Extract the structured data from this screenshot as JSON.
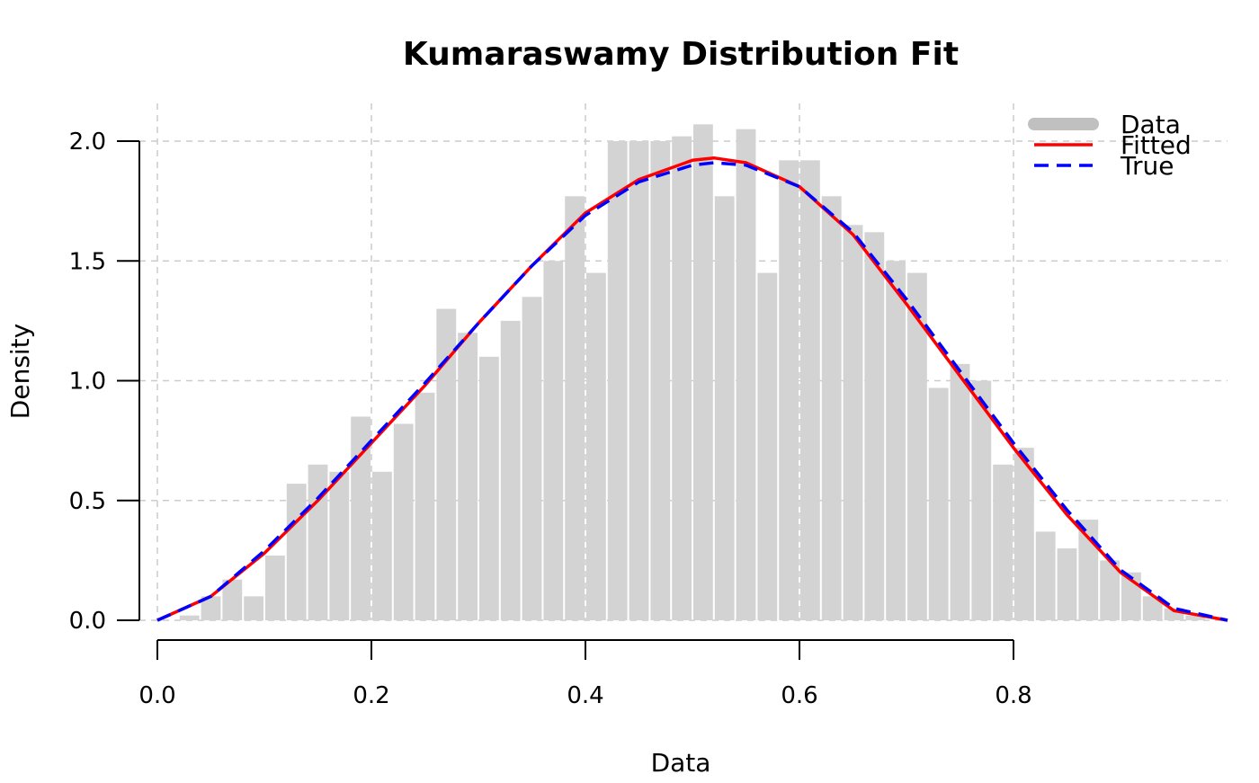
{
  "chart_data": {
    "type": "histogram",
    "title": "Kumaraswamy Distribution Fit",
    "xlabel": "Data",
    "ylabel": "Density",
    "xlim": [
      0,
      1
    ],
    "ylim": [
      0,
      2.1
    ],
    "x_ticks": [
      "0.0",
      "0.2",
      "0.4",
      "0.6",
      "0.8"
    ],
    "x_tick_values": [
      0,
      0.2,
      0.4,
      0.6,
      0.8
    ],
    "y_ticks": [
      "0.0",
      "0.5",
      "1.0",
      "1.5",
      "2.0"
    ],
    "y_tick_values": [
      0,
      0.5,
      1.0,
      1.5,
      2.0
    ],
    "grid": true,
    "legend_position": "top-right",
    "histogram": {
      "name": "Data",
      "color": "#d3d3d3",
      "bin_width": 0.02,
      "bin_starts": [
        0.0,
        0.02,
        0.04,
        0.06,
        0.08,
        0.1,
        0.12,
        0.14,
        0.16,
        0.18,
        0.2,
        0.22,
        0.24,
        0.26,
        0.28,
        0.3,
        0.32,
        0.34,
        0.36,
        0.38,
        0.4,
        0.42,
        0.44,
        0.46,
        0.48,
        0.5,
        0.52,
        0.54,
        0.56,
        0.58,
        0.6,
        0.62,
        0.64,
        0.66,
        0.68,
        0.7,
        0.72,
        0.74,
        0.76,
        0.78,
        0.8,
        0.82,
        0.84,
        0.86,
        0.88,
        0.9,
        0.92,
        0.94,
        0.96,
        0.98
      ],
      "densities": [
        0.0,
        0.02,
        0.1,
        0.17,
        0.1,
        0.27,
        0.57,
        0.65,
        0.62,
        0.85,
        0.62,
        0.82,
        0.95,
        1.3,
        1.2,
        1.1,
        1.25,
        1.35,
        1.5,
        1.77,
        1.45,
        2.0,
        2.0,
        2.0,
        2.02,
        2.07,
        1.77,
        2.05,
        1.45,
        1.92,
        1.92,
        1.77,
        1.65,
        1.62,
        1.5,
        1.45,
        0.97,
        1.07,
        1.0,
        0.65,
        0.72,
        0.37,
        0.3,
        0.42,
        0.25,
        0.2,
        0.1,
        0.05,
        0.02,
        0.0
      ]
    },
    "series": [
      {
        "name": "Fitted",
        "color": "#ff0000",
        "line_style": "solid",
        "x": [
          0.0,
          0.05,
          0.1,
          0.15,
          0.2,
          0.25,
          0.3,
          0.35,
          0.4,
          0.45,
          0.5,
          0.52,
          0.55,
          0.6,
          0.65,
          0.7,
          0.75,
          0.8,
          0.85,
          0.9,
          0.95,
          1.0
        ],
        "y": [
          0.0,
          0.1,
          0.28,
          0.5,
          0.74,
          0.98,
          1.24,
          1.48,
          1.7,
          1.84,
          1.92,
          1.93,
          1.91,
          1.81,
          1.61,
          1.32,
          1.02,
          0.72,
          0.44,
          0.2,
          0.04,
          0.0
        ]
      },
      {
        "name": "True",
        "color": "#0000ff",
        "line_style": "dashed",
        "x": [
          0.0,
          0.05,
          0.1,
          0.15,
          0.2,
          0.25,
          0.3,
          0.35,
          0.4,
          0.45,
          0.5,
          0.52,
          0.55,
          0.6,
          0.65,
          0.7,
          0.75,
          0.8,
          0.85,
          0.9,
          0.95,
          1.0
        ],
        "y": [
          0.0,
          0.1,
          0.29,
          0.51,
          0.75,
          0.99,
          1.24,
          1.48,
          1.69,
          1.83,
          1.9,
          1.91,
          1.9,
          1.81,
          1.62,
          1.34,
          1.04,
          0.74,
          0.46,
          0.21,
          0.05,
          0.0
        ]
      }
    ],
    "legend": [
      {
        "label": "Data",
        "color": "#c0c0c0",
        "style": "thick"
      },
      {
        "label": "Fitted",
        "color": "#ff0000",
        "style": "solid"
      },
      {
        "label": "True",
        "color": "#0000ff",
        "style": "dashed"
      }
    ]
  }
}
